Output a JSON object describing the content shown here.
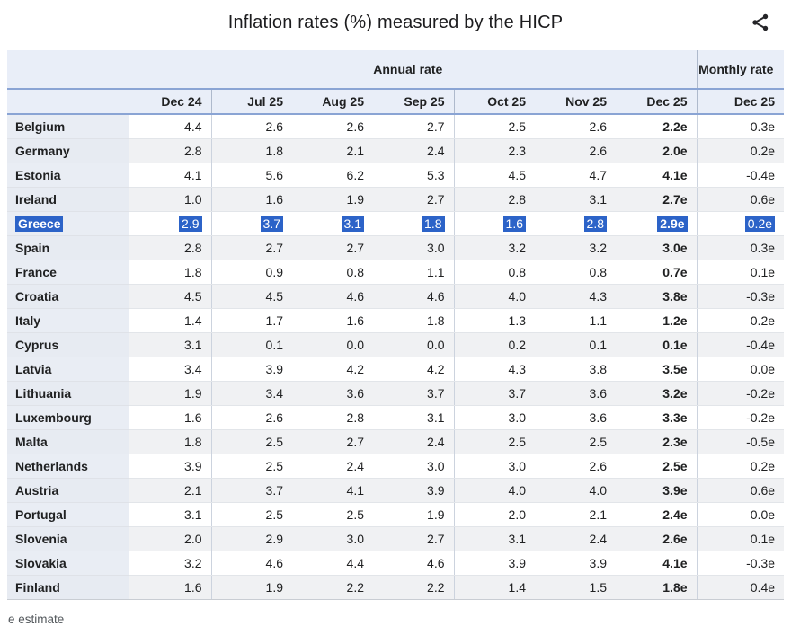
{
  "title": "Inflation rates (%) measured by the HICP",
  "icons": {
    "share": "share-icon"
  },
  "colors": {
    "header_bg": "#e9eef8",
    "row_header_bg": "#e9edf4",
    "row_alt_bg": "#f0f1f3",
    "header_border_blue": "#8aa4d4",
    "selection_blue": "#2c63c8",
    "text": "#202122",
    "footnote_text": "#54595d"
  },
  "table": {
    "group_headers": {
      "annual": "Annual rate",
      "monthly": "Monthly rate"
    },
    "columns": [
      "Dec 24",
      "Jul 25",
      "Aug 25",
      "Sep 25",
      "Oct 25",
      "Nov 25",
      "Dec 25",
      "Dec 25"
    ],
    "rows": [
      {
        "country": "Belgium",
        "values": [
          "4.4",
          "2.6",
          "2.6",
          "2.7",
          "2.5",
          "2.6",
          "2.2e",
          "0.3e"
        ],
        "selected": false
      },
      {
        "country": "Germany",
        "values": [
          "2.8",
          "1.8",
          "2.1",
          "2.4",
          "2.3",
          "2.6",
          "2.0e",
          "0.2e"
        ],
        "selected": false
      },
      {
        "country": "Estonia",
        "values": [
          "4.1",
          "5.6",
          "6.2",
          "5.3",
          "4.5",
          "4.7",
          "4.1e",
          "-0.4e"
        ],
        "selected": false
      },
      {
        "country": "Ireland",
        "values": [
          "1.0",
          "1.6",
          "1.9",
          "2.7",
          "2.8",
          "3.1",
          "2.7e",
          "0.6e"
        ],
        "selected": false
      },
      {
        "country": "Greece",
        "values": [
          "2.9",
          "3.7",
          "3.1",
          "1.8",
          "1.6",
          "2.8",
          "2.9e",
          "0.2e"
        ],
        "selected": true
      },
      {
        "country": "Spain",
        "values": [
          "2.8",
          "2.7",
          "2.7",
          "3.0",
          "3.2",
          "3.2",
          "3.0e",
          "0.3e"
        ],
        "selected": false
      },
      {
        "country": "France",
        "values": [
          "1.8",
          "0.9",
          "0.8",
          "1.1",
          "0.8",
          "0.8",
          "0.7e",
          "0.1e"
        ],
        "selected": false
      },
      {
        "country": "Croatia",
        "values": [
          "4.5",
          "4.5",
          "4.6",
          "4.6",
          "4.0",
          "4.3",
          "3.8e",
          "-0.3e"
        ],
        "selected": false
      },
      {
        "country": "Italy",
        "values": [
          "1.4",
          "1.7",
          "1.6",
          "1.8",
          "1.3",
          "1.1",
          "1.2e",
          "0.2e"
        ],
        "selected": false
      },
      {
        "country": "Cyprus",
        "values": [
          "3.1",
          "0.1",
          "0.0",
          "0.0",
          "0.2",
          "0.1",
          "0.1e",
          "-0.4e"
        ],
        "selected": false
      },
      {
        "country": "Latvia",
        "values": [
          "3.4",
          "3.9",
          "4.2",
          "4.2",
          "4.3",
          "3.8",
          "3.5e",
          "0.0e"
        ],
        "selected": false
      },
      {
        "country": "Lithuania",
        "values": [
          "1.9",
          "3.4",
          "3.6",
          "3.7",
          "3.7",
          "3.6",
          "3.2e",
          "-0.2e"
        ],
        "selected": false
      },
      {
        "country": "Luxembourg",
        "values": [
          "1.6",
          "2.6",
          "2.8",
          "3.1",
          "3.0",
          "3.6",
          "3.3e",
          "-0.2e"
        ],
        "selected": false
      },
      {
        "country": "Malta",
        "values": [
          "1.8",
          "2.5",
          "2.7",
          "2.4",
          "2.5",
          "2.5",
          "2.3e",
          "-0.5e"
        ],
        "selected": false
      },
      {
        "country": "Netherlands",
        "values": [
          "3.9",
          "2.5",
          "2.4",
          "3.0",
          "3.0",
          "2.6",
          "2.5e",
          "0.2e"
        ],
        "selected": false
      },
      {
        "country": "Austria",
        "values": [
          "2.1",
          "3.7",
          "4.1",
          "3.9",
          "4.0",
          "4.0",
          "3.9e",
          "0.6e"
        ],
        "selected": false
      },
      {
        "country": "Portugal",
        "values": [
          "3.1",
          "2.5",
          "2.5",
          "1.9",
          "2.0",
          "2.1",
          "2.4e",
          "0.0e"
        ],
        "selected": false
      },
      {
        "country": "Slovenia",
        "values": [
          "2.0",
          "2.9",
          "3.0",
          "2.7",
          "3.1",
          "2.4",
          "2.6e",
          "0.1e"
        ],
        "selected": false
      },
      {
        "country": "Slovakia",
        "values": [
          "3.2",
          "4.6",
          "4.4",
          "4.6",
          "3.9",
          "3.9",
          "4.1e",
          "-0.3e"
        ],
        "selected": false
      },
      {
        "country": "Finland",
        "values": [
          "1.6",
          "1.9",
          "2.2",
          "2.2",
          "1.4",
          "1.5",
          "1.8e",
          "0.4e"
        ],
        "selected": false
      }
    ]
  },
  "footnote": "e estimate"
}
